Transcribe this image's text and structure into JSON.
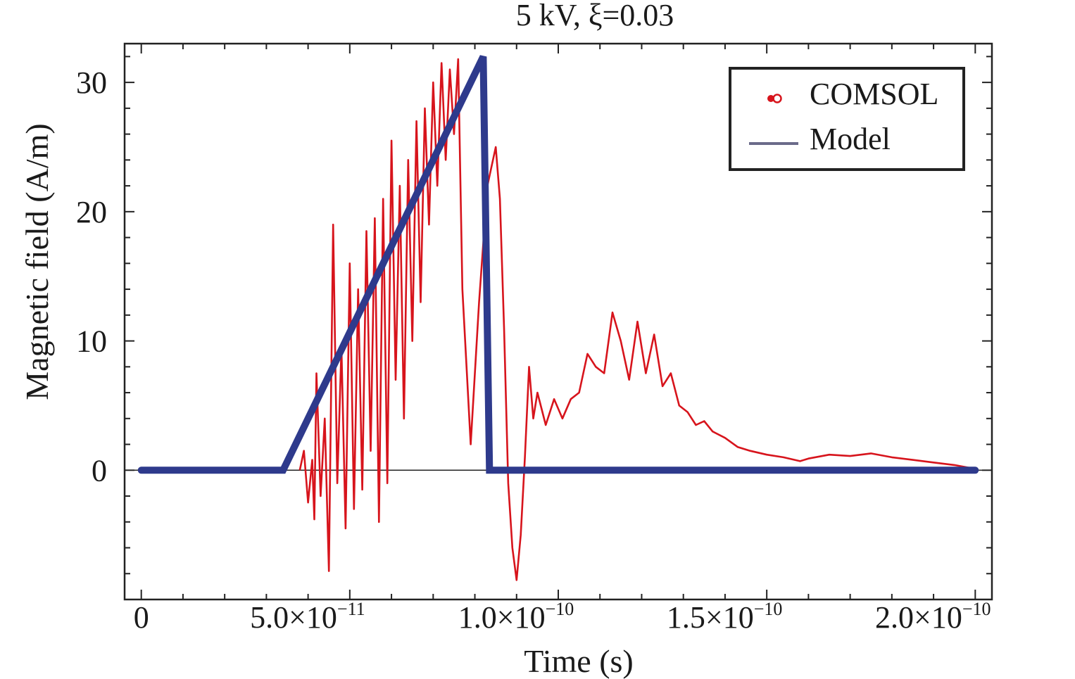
{
  "chart_data": {
    "type": "line",
    "title": "5 kV, ξ=0.03",
    "xlabel": "Time (s)",
    "ylabel": "Magnetic field (A/m)",
    "xlim": [
      -4e-12,
      2.04e-10
    ],
    "ylim": [
      -10,
      33
    ],
    "x_ticks": [
      {
        "value": 0,
        "mantissa": "0",
        "exp": ""
      },
      {
        "value": 5e-11,
        "mantissa": "5.0×10",
        "exp": "−11"
      },
      {
        "value": 1e-10,
        "mantissa": "1.0×10",
        "exp": "−10"
      },
      {
        "value": 1.5e-10,
        "mantissa": "1.5×10",
        "exp": "−10"
      },
      {
        "value": 2e-10,
        "mantissa": "2.0×10",
        "exp": "−10"
      }
    ],
    "y_ticks": [
      {
        "value": 0,
        "label": "0"
      },
      {
        "value": 10,
        "label": "10"
      },
      {
        "value": 20,
        "label": "20"
      },
      {
        "value": 30,
        "label": "30"
      }
    ],
    "zero_line": true,
    "legend_position": "top-right",
    "series": [
      {
        "name": "COMSOL",
        "color": "#d7141c",
        "marker": "circle",
        "points": [
          [
            3.8e-11,
            0
          ],
          [
            3.9e-11,
            1.5
          ],
          [
            4e-11,
            -2.5
          ],
          [
            4.1e-11,
            0.8
          ],
          [
            4.15e-11,
            -3.8
          ],
          [
            4.2e-11,
            7.5
          ],
          [
            4.3e-11,
            -2
          ],
          [
            4.4e-11,
            4
          ],
          [
            4.5e-11,
            -7.8
          ],
          [
            4.6e-11,
            19
          ],
          [
            4.7e-11,
            -1
          ],
          [
            4.8e-11,
            9.5
          ],
          [
            4.9e-11,
            -4.5
          ],
          [
            5e-11,
            16
          ],
          [
            5.1e-11,
            -3
          ],
          [
            5.2e-11,
            14
          ],
          [
            5.3e-11,
            -1.5
          ],
          [
            5.4e-11,
            18.5
          ],
          [
            5.5e-11,
            1.5
          ],
          [
            5.6e-11,
            19.5
          ],
          [
            5.7e-11,
            -4
          ],
          [
            5.8e-11,
            21
          ],
          [
            5.9e-11,
            -1
          ],
          [
            6e-11,
            25.5
          ],
          [
            6.1e-11,
            7
          ],
          [
            6.2e-11,
            22
          ],
          [
            6.3e-11,
            4
          ],
          [
            6.4e-11,
            24
          ],
          [
            6.5e-11,
            10
          ],
          [
            6.6e-11,
            27
          ],
          [
            6.7e-11,
            13
          ],
          [
            6.8e-11,
            28
          ],
          [
            6.9e-11,
            19
          ],
          [
            7e-11,
            30
          ],
          [
            7.1e-11,
            22
          ],
          [
            7.2e-11,
            31.5
          ],
          [
            7.3e-11,
            24
          ],
          [
            7.4e-11,
            31
          ],
          [
            7.5e-11,
            26
          ],
          [
            7.6e-11,
            31.8
          ],
          [
            7.7e-11,
            14
          ],
          [
            7.8e-11,
            8
          ],
          [
            7.9e-11,
            2
          ],
          [
            8.1e-11,
            13
          ],
          [
            8.3e-11,
            22
          ],
          [
            8.5e-11,
            25
          ],
          [
            8.6e-11,
            21
          ],
          [
            8.7e-11,
            11
          ],
          [
            8.8e-11,
            -1
          ],
          [
            8.9e-11,
            -6
          ],
          [
            9e-11,
            -8.5
          ],
          [
            9.1e-11,
            -5
          ],
          [
            9.2e-11,
            1
          ],
          [
            9.3e-11,
            8
          ],
          [
            9.4e-11,
            4
          ],
          [
            9.5e-11,
            6
          ],
          [
            9.7e-11,
            3.5
          ],
          [
            9.9e-11,
            5.5
          ],
          [
            1.01e-10,
            4
          ],
          [
            1.03e-10,
            5.5
          ],
          [
            1.05e-10,
            6
          ],
          [
            1.07e-10,
            9
          ],
          [
            1.09e-10,
            8
          ],
          [
            1.11e-10,
            7.5
          ],
          [
            1.13e-10,
            12.2
          ],
          [
            1.15e-10,
            10
          ],
          [
            1.17e-10,
            7
          ],
          [
            1.19e-10,
            11.5
          ],
          [
            1.21e-10,
            7.5
          ],
          [
            1.23e-10,
            10.5
          ],
          [
            1.25e-10,
            6.5
          ],
          [
            1.27e-10,
            7.5
          ],
          [
            1.29e-10,
            5
          ],
          [
            1.31e-10,
            4.5
          ],
          [
            1.33e-10,
            3.5
          ],
          [
            1.35e-10,
            3.8
          ],
          [
            1.37e-10,
            3
          ],
          [
            1.4e-10,
            2.5
          ],
          [
            1.43e-10,
            1.8
          ],
          [
            1.46e-10,
            1.5
          ],
          [
            1.5e-10,
            1.2
          ],
          [
            1.54e-10,
            1.0
          ],
          [
            1.58e-10,
            0.7
          ],
          [
            1.6e-10,
            0.9
          ],
          [
            1.65e-10,
            1.2
          ],
          [
            1.7e-10,
            1.1
          ],
          [
            1.75e-10,
            1.3
          ],
          [
            1.8e-10,
            1.0
          ],
          [
            1.85e-10,
            0.8
          ],
          [
            1.9e-10,
            0.6
          ],
          [
            1.95e-10,
            0.4
          ],
          [
            2e-10,
            0.1
          ]
        ]
      },
      {
        "name": "Model",
        "color": "#2e3a8c",
        "legend_color": "#6b6b8a",
        "points": [
          [
            0,
            0
          ],
          [
            3.4e-11,
            0
          ],
          [
            8.2e-11,
            32
          ],
          [
            8.35e-11,
            0
          ],
          [
            2e-10,
            0
          ]
        ]
      }
    ]
  }
}
